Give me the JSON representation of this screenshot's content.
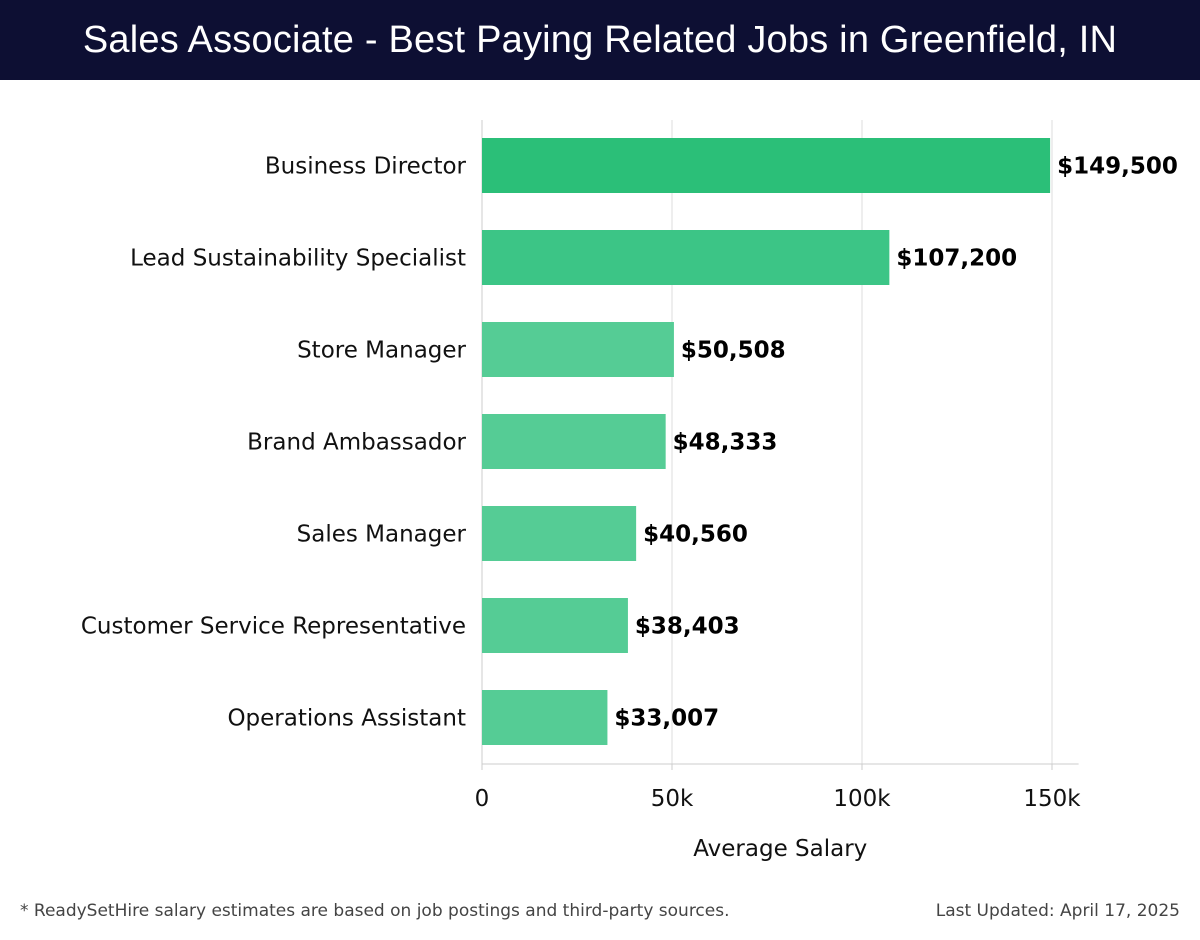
{
  "header": {
    "title": "Sales Associate - Best Paying Related Jobs in Greenfield, IN"
  },
  "chart_data": {
    "type": "bar",
    "orientation": "horizontal",
    "categories": [
      "Business Director",
      "Lead Sustainability Specialist",
      "Store Manager",
      "Brand Ambassador",
      "Sales Manager",
      "Customer Service Representative",
      "Operations Assistant"
    ],
    "values": [
      149500,
      107200,
      50508,
      48333,
      40560,
      38403,
      33007
    ],
    "value_labels": [
      "$149,500",
      "$107,200",
      "$50,508",
      "$48,333",
      "$40,560",
      "$38,403",
      "$33,007"
    ],
    "xlabel": "Average Salary",
    "xlim": [
      0,
      157000
    ],
    "xticks": [
      0,
      50000,
      100000,
      150000
    ],
    "xtick_labels": [
      "0",
      "50k",
      "100k",
      "150k"
    ],
    "grid": "vertical",
    "colors": {
      "bar_high": "#2bbf78",
      "bar_mid": "#3cc586",
      "bar_low": "#55cc95",
      "grid": "#e3e3e3",
      "axis": "#cccccc"
    }
  },
  "footer": {
    "note": "* ReadySetHire salary estimates are based on job postings and third-party sources.",
    "updated": "Last Updated: April 17, 2025"
  }
}
